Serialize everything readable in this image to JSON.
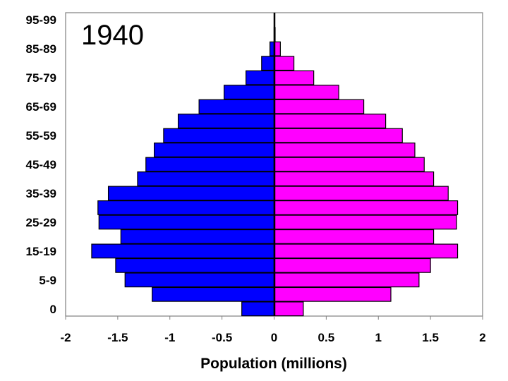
{
  "chart_data": {
    "type": "bar",
    "orientation": "horizontal",
    "layout": "population-pyramid",
    "title": "1940",
    "xlabel": "Population (millions)",
    "ylabel": "",
    "xlim": [
      -2,
      2
    ],
    "x_ticks": [
      "-2",
      "-1.5",
      "-1",
      "-0.5",
      "0",
      "0.5",
      "1",
      "1.5",
      "2"
    ],
    "y_tick_labels": [
      "0",
      "5-9",
      "15-19",
      "25-29",
      "35-39",
      "45-49",
      "55-59",
      "65-69",
      "75-79",
      "85-89",
      "95-99"
    ],
    "categories": [
      "0",
      "",
      "5-9",
      "",
      "15-19",
      "",
      "25-29",
      "",
      "35-39",
      "",
      "45-49",
      "",
      "55-59",
      "",
      "65-69",
      "",
      "75-79",
      "",
      "85-89",
      "",
      "95-99"
    ],
    "series": [
      {
        "color": "#0000ff",
        "side": "left",
        "values": [
          -0.31,
          -1.17,
          -1.43,
          -1.52,
          -1.75,
          -1.47,
          -1.68,
          -1.69,
          -1.59,
          -1.31,
          -1.23,
          -1.15,
          -1.06,
          -0.92,
          -0.72,
          -0.48,
          -0.27,
          -0.12,
          -0.04,
          0,
          0
        ]
      },
      {
        "color": "#ff00ff",
        "side": "right",
        "values": [
          0.28,
          1.12,
          1.39,
          1.5,
          1.76,
          1.53,
          1.75,
          1.76,
          1.67,
          1.53,
          1.44,
          1.35,
          1.23,
          1.07,
          0.86,
          0.62,
          0.38,
          0.19,
          0.06,
          0.01,
          0
        ]
      }
    ],
    "grid": false,
    "legend": "none"
  }
}
